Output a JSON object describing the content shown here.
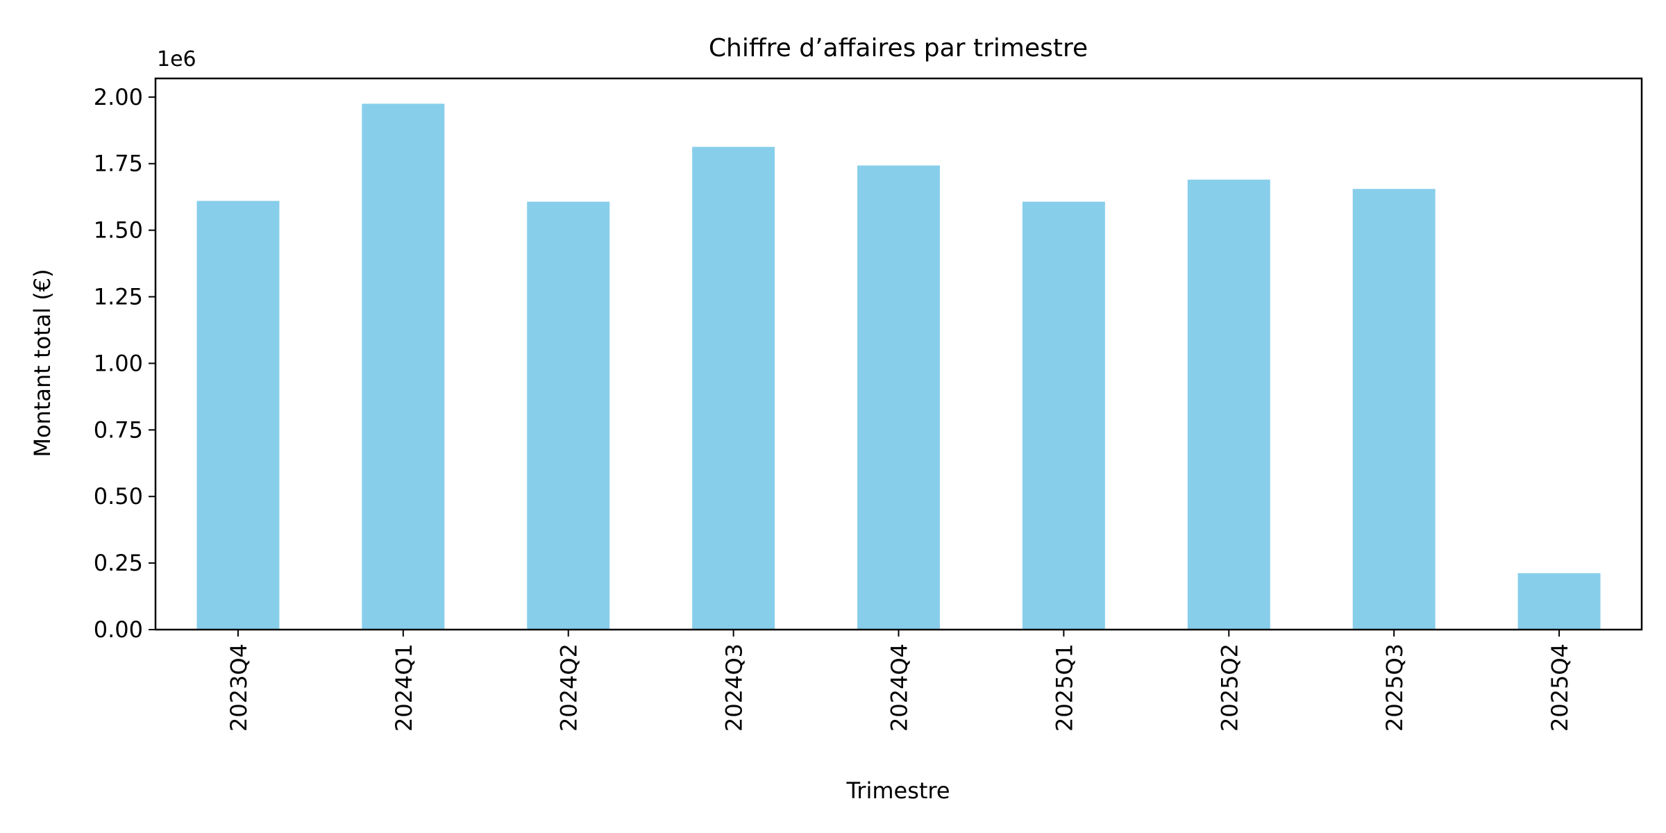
{
  "chart_data": {
    "type": "bar",
    "title": "Chiffre d’affaires par trimestre",
    "xlabel": "Trimestre",
    "ylabel": "Montant total (€)",
    "y_scale_label": "1e6",
    "categories": [
      "2023Q4",
      "2024Q1",
      "2024Q2",
      "2024Q3",
      "2024Q4",
      "2025Q1",
      "2025Q2",
      "2025Q3",
      "2025Q4"
    ],
    "values": [
      1610000,
      1975000,
      1607000,
      1813000,
      1743000,
      1607000,
      1690000,
      1655000,
      212000
    ],
    "ylim": [
      0,
      2070000
    ],
    "yticks": [
      0,
      250000,
      500000,
      750000,
      1000000,
      1250000,
      1500000,
      1750000,
      2000000
    ],
    "ytick_labels": [
      "0.00",
      "0.25",
      "0.50",
      "0.75",
      "1.00",
      "1.25",
      "1.50",
      "1.75",
      "2.00"
    ],
    "bar_color": "#87ceeb",
    "grid": false,
    "legend": "none"
  }
}
